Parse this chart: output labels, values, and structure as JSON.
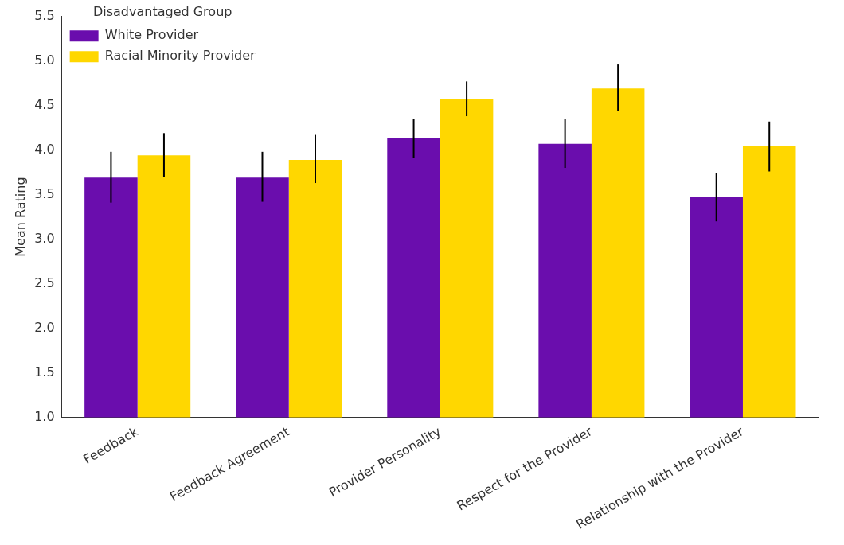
{
  "chart_data": {
    "type": "bar",
    "ylabel": "Mean Rating",
    "legend_title": "Disadvantaged Group",
    "categories": [
      "Feedback",
      "Feedback Agreement",
      "Provider Personality",
      "Respect for the Provider",
      "Relationship with the Provider"
    ],
    "series": [
      {
        "name": "White Provider",
        "color": "#6a0dad",
        "values": [
          3.69,
          3.69,
          4.13,
          4.07,
          3.47
        ],
        "errors": [
          [
            3.41,
            3.98
          ],
          [
            3.42,
            3.98
          ],
          [
            3.91,
            4.35
          ],
          [
            3.8,
            4.35
          ],
          [
            3.2,
            3.74
          ]
        ]
      },
      {
        "name": "Racial Minority Provider",
        "color": "#ffd700",
        "values": [
          3.94,
          3.89,
          4.57,
          4.69,
          4.04
        ],
        "errors": [
          [
            3.7,
            4.19
          ],
          [
            3.63,
            4.17
          ],
          [
            4.38,
            4.77
          ],
          [
            4.44,
            4.96
          ],
          [
            3.76,
            4.32
          ]
        ]
      }
    ],
    "ylim": [
      1.0,
      5.5
    ],
    "yticks": [
      {
        "value": 1,
        "label": "1.0"
      },
      {
        "value": 1.5,
        "label": "1.5"
      },
      {
        "value": 2,
        "label": "2.0"
      },
      {
        "value": 2.5,
        "label": "2.5"
      },
      {
        "value": 3,
        "label": "3.0"
      },
      {
        "value": 3.5,
        "label": "3.5"
      },
      {
        "value": 4,
        "label": "4.0"
      },
      {
        "value": 4.5,
        "label": "4.5"
      },
      {
        "value": 5,
        "label": "5.0"
      },
      {
        "value": 5.5,
        "label": "5.5"
      }
    ],
    "grid": false,
    "legend": "top left"
  }
}
